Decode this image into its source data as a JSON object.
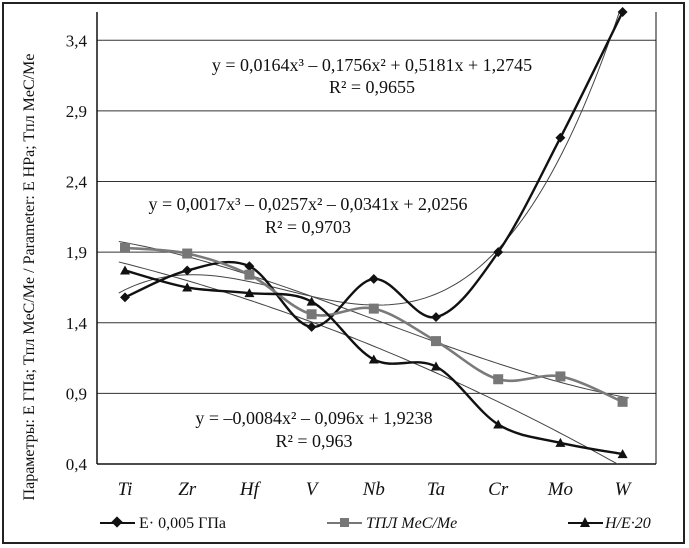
{
  "chart_data": {
    "type": "line",
    "categories": [
      "Ti",
      "Zr",
      "Hf",
      "V",
      "Nb",
      "Ta",
      "Cr",
      "Mo",
      "W"
    ],
    "ylabel": "Параметры: E ГПа; Tпл MeC/Me / Parameter: E HPa; Tпл MeC/Me",
    "ylim": [
      0.4,
      3.6
    ],
    "yticks": [
      "0,4",
      "0,9",
      "1,4",
      "1,9",
      "2,4",
      "2,9",
      "3,4"
    ],
    "ytick_values": [
      0.4,
      0.9,
      1.4,
      1.9,
      2.4,
      2.9,
      3.4
    ],
    "grid": true,
    "legend_position": "bottom",
    "series": [
      {
        "name": "E· 0,005 ГПа",
        "marker": "diamond",
        "values": [
          1.58,
          1.77,
          1.8,
          1.37,
          1.71,
          1.44,
          1.9,
          2.71,
          3.6
        ]
      },
      {
        "name": "TПЛ MeC/Me",
        "marker": "square",
        "values": [
          1.93,
          1.89,
          1.74,
          1.46,
          1.5,
          1.27,
          1.0,
          1.02,
          0.84
        ]
      },
      {
        "name": "H/E·20",
        "marker": "triangle",
        "values": [
          1.77,
          1.65,
          1.61,
          1.55,
          1.14,
          1.09,
          0.68,
          0.55,
          0.47
        ]
      }
    ],
    "annotations": [
      {
        "equation": "y = 0,0164x³ – 0,1756x² + 0,5181x + 1,2745",
        "r2": "R² = 0,9655"
      },
      {
        "equation": "y = 0,0017x³ – 0,0257x² – 0,0341x + 2,0256",
        "r2": "R² = 0,9703"
      },
      {
        "equation": "y = –0,0084x² – 0,096x + 1,9238",
        "r2": "R² = 0,963"
      }
    ],
    "trendlines": [
      {
        "kind": "poly3",
        "coef": [
          1.2745,
          0.5181,
          -0.1756,
          0.0164
        ]
      },
      {
        "kind": "poly3",
        "coef": [
          2.0256,
          -0.0341,
          -0.0257,
          0.0017
        ]
      },
      {
        "kind": "poly2",
        "coef": [
          1.9238,
          -0.096,
          -0.0084
        ]
      }
    ]
  }
}
